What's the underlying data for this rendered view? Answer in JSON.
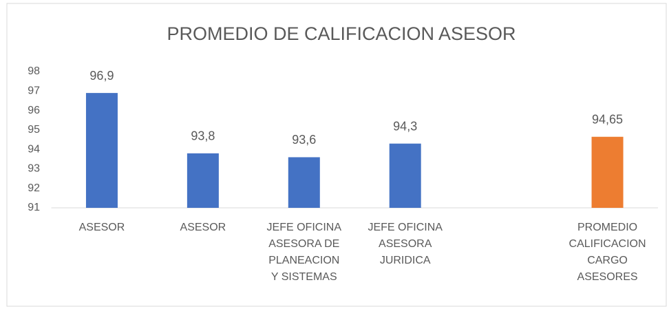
{
  "chart_data": {
    "type": "bar",
    "title": "PROMEDIO DE CALIFICACION  ASESOR",
    "categories": [
      "ASESOR",
      "ASESOR",
      "JEFE  OFICINA\nASESORA DE\nPLANEACION\nY SISTEMAS",
      "JEFE  OFICINA\nASESORA\nJURIDICA",
      null,
      "PROMEDIO\nCALIFICACION\nCARGO\nASESORES"
    ],
    "values": [
      96.9,
      93.8,
      93.6,
      94.3,
      null,
      94.65
    ],
    "value_labels": [
      "96,9",
      "93,8",
      "93,6",
      "94,3",
      null,
      "94,65"
    ],
    "colors": [
      "#4472c4",
      "#4472c4",
      "#4472c4",
      "#4472c4",
      null,
      "#ed7d31"
    ],
    "ylim": [
      91,
      98
    ],
    "yticks": [
      91,
      92,
      93,
      94,
      95,
      96,
      97,
      98
    ],
    "grid": false
  }
}
